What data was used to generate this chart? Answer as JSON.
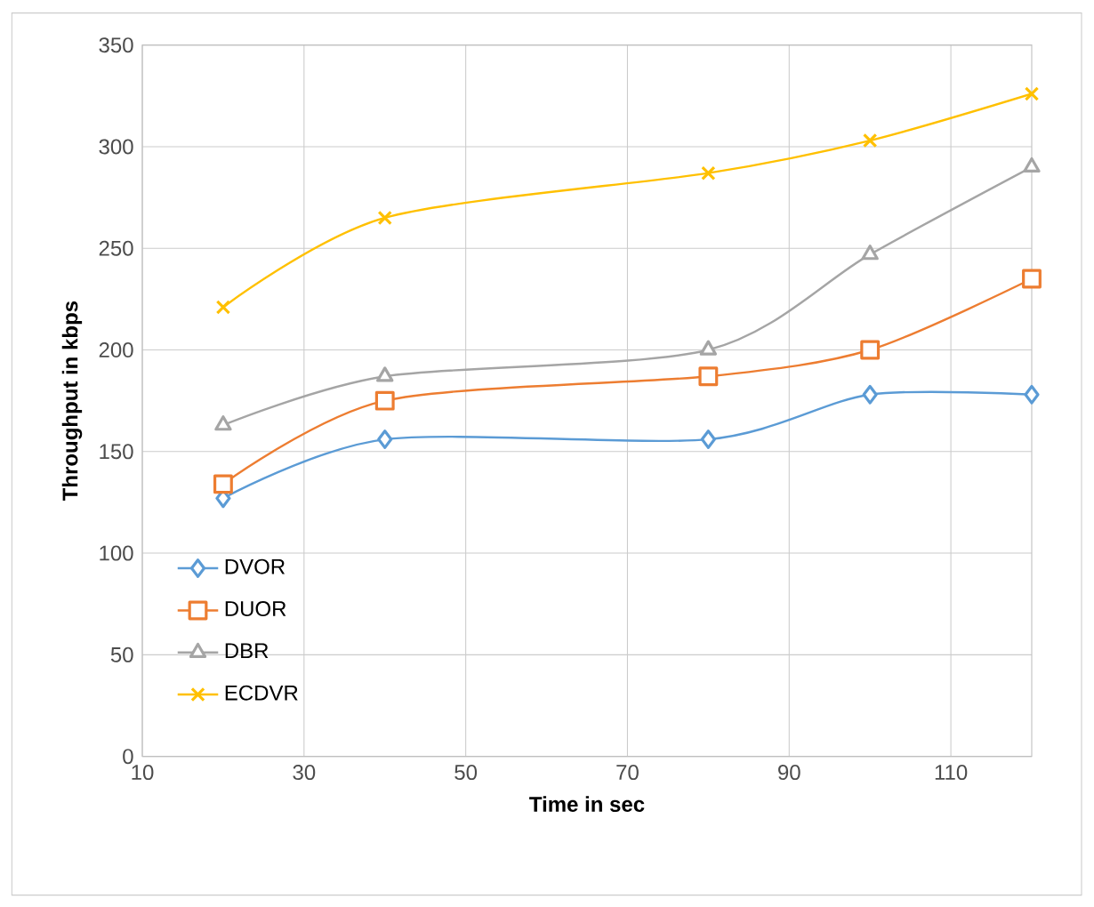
{
  "chart_data": {
    "type": "line",
    "xlabel": "Time in sec",
    "ylabel": "Throughput in kbps",
    "x": [
      20,
      40,
      80,
      100,
      120
    ],
    "series": [
      {
        "name": "DVOR",
        "color": "#5b9bd5",
        "marker": "diamond",
        "values": [
          127,
          156,
          156,
          178,
          178
        ]
      },
      {
        "name": "DUOR",
        "color": "#ed7d31",
        "marker": "square",
        "values": [
          134,
          175,
          187,
          200,
          235
        ]
      },
      {
        "name": "DBR",
        "color": "#a5a5a5",
        "marker": "triangle",
        "values": [
          163,
          187,
          200,
          247,
          290
        ]
      },
      {
        "name": "ECDVR",
        "color": "#ffc000",
        "marker": "cross",
        "values": [
          221,
          265,
          287,
          303,
          326
        ]
      }
    ],
    "xlim": [
      10,
      120
    ],
    "xticks": [
      10,
      30,
      50,
      70,
      90,
      110
    ],
    "ylim": [
      0,
      350
    ],
    "yticks": [
      0,
      50,
      100,
      150,
      200,
      250,
      300,
      350
    ],
    "grid": true,
    "legend": "bottom left"
  }
}
